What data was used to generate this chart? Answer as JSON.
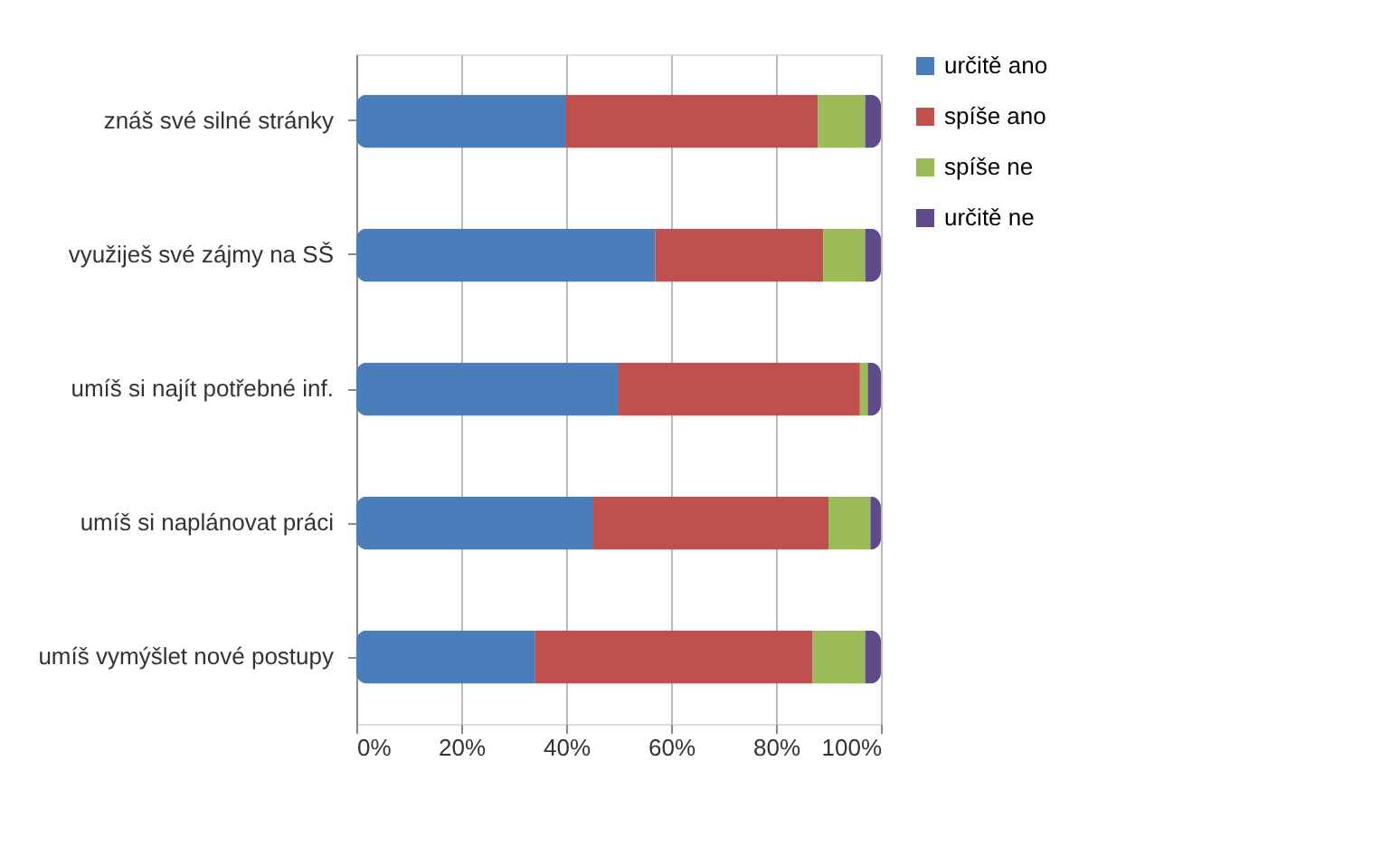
{
  "chart_data": {
    "type": "bar",
    "orientation": "horizontal",
    "stacked": true,
    "categories": [
      "znáš své silné stránky",
      "využiješ své zájmy na SŠ",
      "umíš si najít potřebné inf.",
      "umíš si naplánovat práci",
      "umíš vymýšlet nové postupy"
    ],
    "series": [
      {
        "name": "určitě ano",
        "color": "#4a7ebb",
        "values": [
          40,
          57,
          50,
          45,
          34
        ]
      },
      {
        "name": "spíše ano",
        "color": "#c0504d",
        "values": [
          48,
          32,
          46,
          45,
          53
        ]
      },
      {
        "name": "spíše ne",
        "color": "#9bbb59",
        "values": [
          9,
          8,
          1.5,
          8,
          10
        ]
      },
      {
        "name": "určitě ne",
        "color": "#5f4b8b",
        "values": [
          3,
          3,
          2.5,
          2,
          3
        ]
      }
    ],
    "xlim": [
      0,
      100
    ],
    "xticks": [
      {
        "value": 0,
        "label": "0%"
      },
      {
        "value": 20,
        "label": "20%"
      },
      {
        "value": 40,
        "label": "40%"
      },
      {
        "value": 60,
        "label": "60%"
      },
      {
        "value": 80,
        "label": "80%"
      },
      {
        "value": 100,
        "label": "100%"
      }
    ],
    "grid": "x",
    "legend": "right"
  }
}
